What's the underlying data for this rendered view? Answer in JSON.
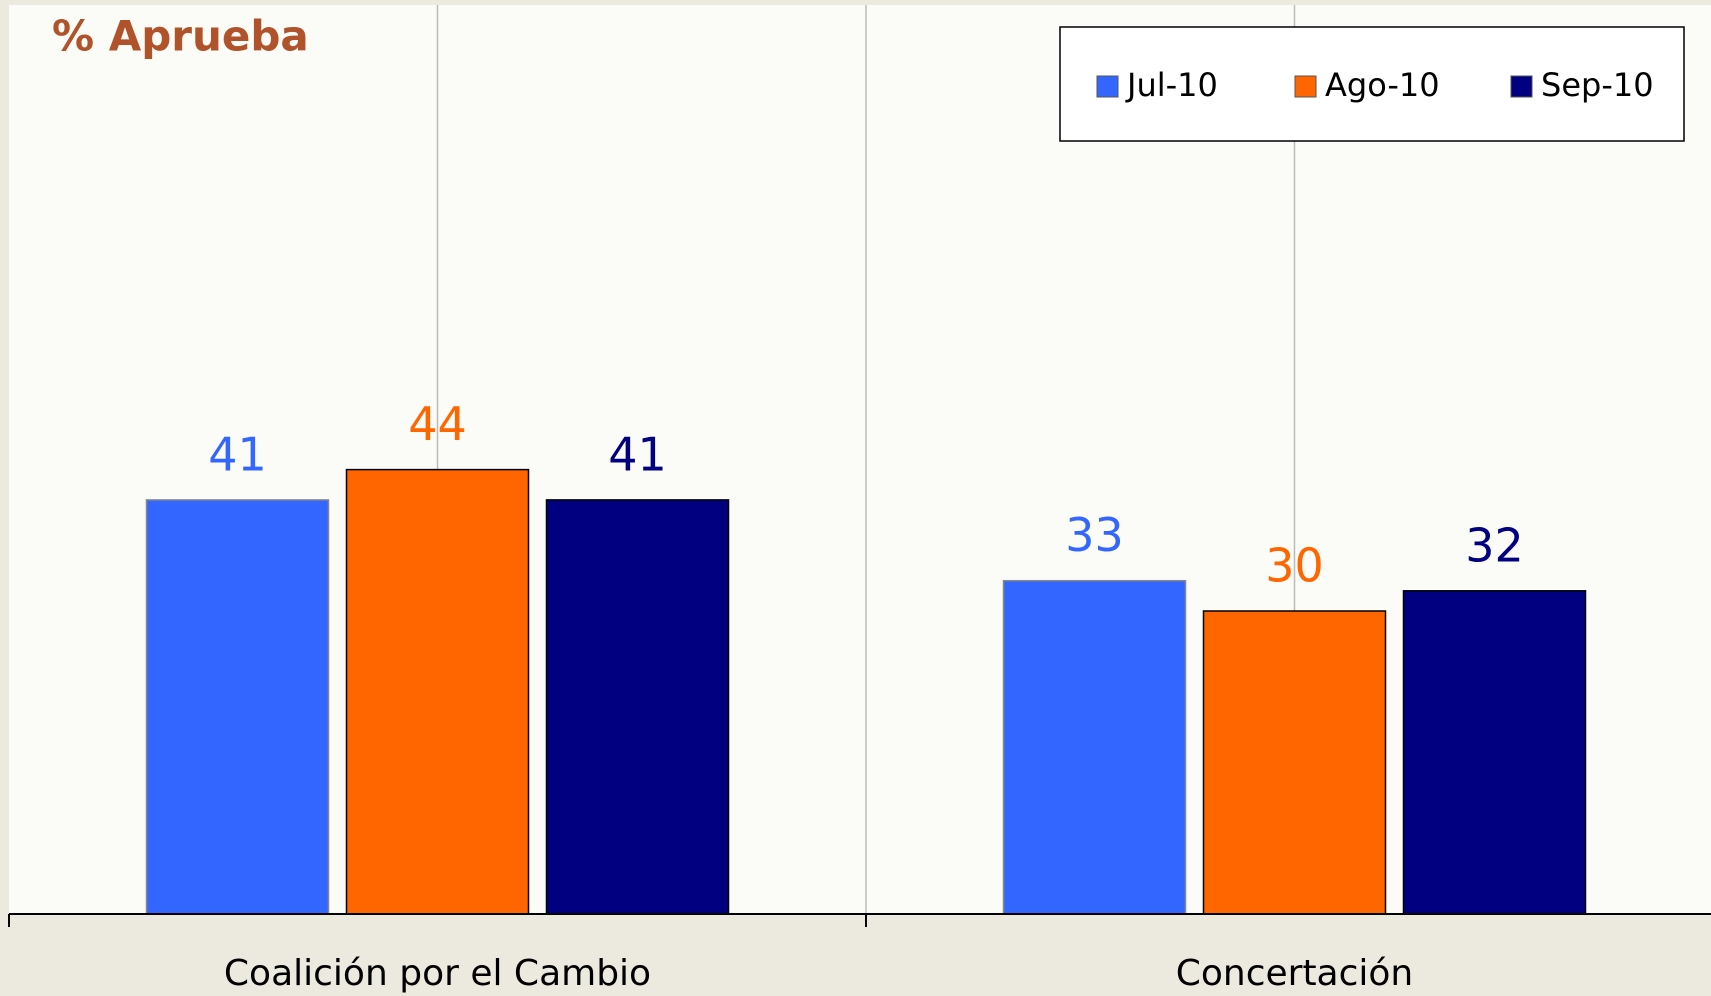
{
  "chart_data": {
    "type": "bar",
    "title": "% Aprueba",
    "categories": [
      "Coalición por el Cambio",
      "Concertación"
    ],
    "series": [
      {
        "name": "Jul-10",
        "color": "#3366ff",
        "values": [
          41,
          33
        ]
      },
      {
        "name": "Ago-10",
        "color": "#ff6600",
        "values": [
          44,
          30
        ]
      },
      {
        "name": "Sep-10",
        "color": "#000080",
        "values": [
          41,
          32
        ]
      }
    ],
    "ylim": [
      0,
      90
    ],
    "legend": "top-right"
  }
}
